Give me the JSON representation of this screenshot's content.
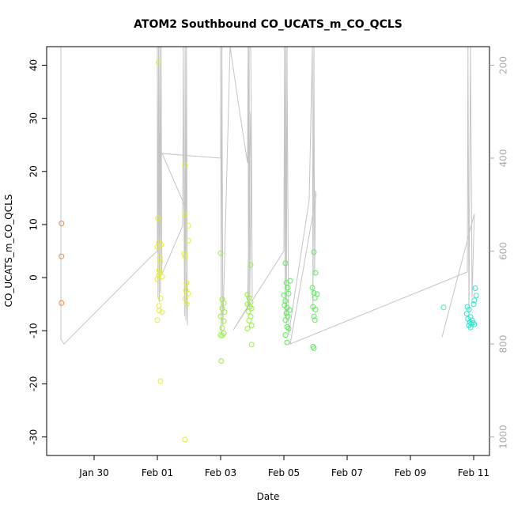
{
  "chart_data": {
    "type": "scatter",
    "title": "ATOM2 Southbound CO_UCATS_m_CO_QCLS",
    "xlabel": "Date",
    "ylabel": "CO_UCATS_m_CO_QCLS",
    "x_range_days": [
      -2.5,
      11.5
    ],
    "ylim": [
      -33.5,
      43.5
    ],
    "y2lim": [
      1040,
      160
    ],
    "x_ticks": [
      {
        "value": -1,
        "label": "Jan 30"
      },
      {
        "value": 1,
        "label": "Feb 01"
      },
      {
        "value": 3,
        "label": "Feb 03"
      },
      {
        "value": 5,
        "label": "Feb 05"
      },
      {
        "value": 7,
        "label": "Feb 07"
      },
      {
        "value": 9,
        "label": "Feb 09"
      },
      {
        "value": 11,
        "label": "Feb 11"
      }
    ],
    "y_ticks": [
      -30,
      -20,
      -10,
      0,
      10,
      20,
      30,
      40
    ],
    "y2_ticks": [
      200,
      400,
      600,
      800,
      1000
    ],
    "point_groups": [
      {
        "color": "#e88a45",
        "points": [
          [
            -2.03,
            10.2
          ],
          [
            -2.03,
            4.0
          ],
          [
            -2.03,
            -4.8
          ]
        ]
      },
      {
        "color": "#e6ee30",
        "points": [
          [
            1.04,
            40.5
          ],
          [
            1.02,
            11.2
          ],
          [
            1.05,
            6.6
          ],
          [
            1.0,
            5.8
          ],
          [
            1.12,
            6.2
          ],
          [
            1.08,
            3.8
          ],
          [
            1.1,
            3.0
          ],
          [
            1.06,
            1.4
          ],
          [
            1.08,
            0.8
          ],
          [
            1.04,
            0.4
          ],
          [
            1.15,
            0.2
          ],
          [
            1.0,
            -0.3
          ],
          [
            1.1,
            -3.9
          ],
          [
            1.05,
            -5.3
          ],
          [
            1.15,
            -6.5
          ],
          [
            1.06,
            -6.2
          ],
          [
            1.0,
            -8.0
          ],
          [
            1.1,
            -19.5
          ],
          [
            1.87,
            21.2
          ],
          [
            1.87,
            11.8
          ],
          [
            1.98,
            9.8
          ],
          [
            1.98,
            7.0
          ],
          [
            1.85,
            4.5
          ],
          [
            1.88,
            4.0
          ],
          [
            1.92,
            -1.0
          ],
          [
            1.9,
            -2.4
          ],
          [
            1.97,
            -3.0
          ],
          [
            1.88,
            -4.0
          ],
          [
            1.93,
            -5.0
          ],
          [
            1.87,
            -30.5
          ]
        ]
      },
      {
        "color": "#98f03c",
        "points": [
          [
            3.0,
            4.6
          ],
          [
            3.05,
            -4.1
          ],
          [
            3.1,
            -4.8
          ],
          [
            3.05,
            -5.8
          ],
          [
            3.12,
            -6.5
          ],
          [
            3.0,
            -7.3
          ],
          [
            3.1,
            -8.2
          ],
          [
            3.05,
            -9.5
          ],
          [
            3.0,
            -10.8
          ],
          [
            3.1,
            -10.5
          ],
          [
            3.05,
            -10.9
          ],
          [
            3.02,
            -15.7
          ],
          [
            3.85,
            -3.2
          ],
          [
            3.9,
            -3.8
          ],
          [
            3.95,
            -4.6
          ],
          [
            3.85,
            -5.0
          ],
          [
            3.92,
            -5.5
          ],
          [
            3.98,
            -5.8
          ],
          [
            3.88,
            -6.4
          ],
          [
            3.95,
            -7.3
          ],
          [
            3.9,
            -8.1
          ],
          [
            3.98,
            -9.0
          ],
          [
            3.85,
            -9.6
          ],
          [
            3.95,
            2.4
          ],
          [
            3.98,
            -12.6
          ]
        ]
      },
      {
        "color": "#55f055",
        "points": [
          [
            5.05,
            2.7
          ],
          [
            5.2,
            -0.6
          ],
          [
            5.08,
            -1.0
          ],
          [
            5.12,
            -1.9
          ],
          [
            5.0,
            -3.3
          ],
          [
            5.15,
            -3.0
          ],
          [
            5.05,
            -4.4
          ],
          [
            5.02,
            -5.2
          ],
          [
            5.1,
            -5.7
          ],
          [
            5.18,
            -6.1
          ],
          [
            5.08,
            -6.7
          ],
          [
            5.12,
            -7.3
          ],
          [
            5.05,
            -8.0
          ],
          [
            5.1,
            -9.3
          ],
          [
            5.15,
            -9.6
          ],
          [
            5.05,
            -10.8
          ],
          [
            5.1,
            -12.2
          ],
          [
            5.95,
            4.8
          ],
          [
            6.0,
            0.9
          ],
          [
            5.9,
            -1.9
          ],
          [
            5.95,
            -2.9
          ],
          [
            6.05,
            -3.1
          ],
          [
            5.98,
            -3.8
          ],
          [
            5.92,
            -5.5
          ],
          [
            6.0,
            -6.0
          ],
          [
            5.95,
            -7.3
          ],
          [
            5.98,
            -8.0
          ],
          [
            5.92,
            -13.0
          ],
          [
            5.95,
            -13.3
          ]
        ]
      },
      {
        "color": "#3cf0a6",
        "points": [
          [
            10.05,
            -5.6
          ]
        ]
      },
      {
        "color": "#2ee6cc",
        "points": [
          [
            10.8,
            -5.5
          ],
          [
            10.85,
            -6.0
          ],
          [
            10.78,
            -6.8
          ],
          [
            10.9,
            -7.4
          ],
          [
            10.82,
            -7.8
          ],
          [
            10.95,
            -8.0
          ],
          [
            10.88,
            -8.4
          ],
          [
            10.92,
            -8.7
          ],
          [
            10.85,
            -9.0
          ],
          [
            10.9,
            -9.4
          ],
          [
            11.05,
            -2.0
          ],
          [
            11.08,
            -3.4
          ],
          [
            11.02,
            -4.3
          ],
          [
            11.0,
            -5.0
          ],
          [
            10.98,
            -8.5
          ],
          [
            11.02,
            -8.8
          ]
        ]
      }
    ],
    "altitude_track": [
      [
        -2.05,
        160
      ],
      [
        -2.05,
        790
      ],
      [
        -1.95,
        800
      ],
      [
        0.8,
        612
      ],
      [
        1.0,
        600
      ],
      [
        1.0,
        160
      ],
      [
        1.02,
        700
      ],
      [
        1.04,
        160
      ],
      [
        1.06,
        710
      ],
      [
        1.08,
        160
      ],
      [
        1.1,
        690
      ],
      [
        1.12,
        160
      ],
      [
        1.14,
        650
      ],
      [
        1.8,
        546
      ],
      [
        1.82,
        160
      ],
      [
        1.86,
        740
      ],
      [
        1.88,
        160
      ],
      [
        1.9,
        750
      ],
      [
        1.92,
        160
      ],
      [
        1.95,
        760
      ],
      [
        1.85,
        500
      ],
      [
        1.15,
        390
      ],
      [
        3.0,
        400
      ],
      [
        3.0,
        160
      ],
      [
        3.02,
        780
      ],
      [
        3.04,
        160
      ],
      [
        3.07,
        760
      ],
      [
        3.3,
        160
      ],
      [
        3.6,
        300
      ],
      [
        3.85,
        410
      ],
      [
        3.87,
        160
      ],
      [
        3.88,
        720
      ],
      [
        3.9,
        160
      ],
      [
        3.92,
        730
      ],
      [
        3.97,
        330
      ],
      [
        3.95,
        160
      ],
      [
        3.98,
        420
      ],
      [
        4.0,
        700
      ],
      [
        3.95,
        300
      ],
      [
        3.85,
        720
      ],
      [
        3.4,
        770
      ],
      [
        5.0,
        600
      ],
      [
        5.02,
        160
      ],
      [
        5.04,
        740
      ],
      [
        5.06,
        160
      ],
      [
        5.08,
        760
      ],
      [
        5.1,
        160
      ],
      [
        5.15,
        780
      ],
      [
        5.8,
        490
      ],
      [
        5.9,
        160
      ],
      [
        5.92,
        730
      ],
      [
        5.95,
        160
      ],
      [
        5.97,
        650
      ],
      [
        6.0,
        470
      ],
      [
        6.02,
        480
      ],
      [
        5.2,
        800
      ],
      [
        10.8,
        645
      ],
      [
        10.82,
        160
      ],
      [
        10.85,
        740
      ],
      [
        10.9,
        160
      ],
      [
        10.95,
        700
      ],
      [
        11.02,
        520
      ],
      [
        10.0,
        785
      ]
    ]
  }
}
